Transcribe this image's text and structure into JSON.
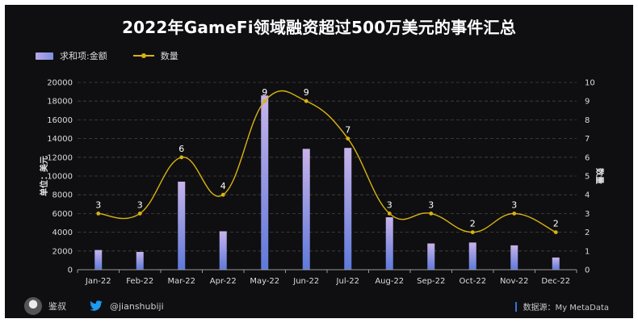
{
  "title": "2022年GameFi领域融资超过500万美元的事件汇总",
  "legend": {
    "bar_label": "求和项:金额",
    "line_label": "数量"
  },
  "footer": {
    "author": "鉴叔",
    "handle": "@jianshubiji",
    "source": "数据源：My MetaData"
  },
  "icons": [
    "avatar-icon",
    "twitter-bird-icon"
  ],
  "colors": {
    "background": "#0f0f11",
    "bar_top": "#c7b3ea",
    "bar_bottom": "#5f79da",
    "line": "#d8b311",
    "grid": "#3a3a3a",
    "text": "#dcdcdc"
  },
  "chart_data": {
    "type": "bar",
    "categories": [
      "Jan-22",
      "Feb-22",
      "Mar-22",
      "Apr-22",
      "May-22",
      "Jun-22",
      "Jul-22",
      "Aug-22",
      "Sep-22",
      "Oct-22",
      "Nov-22",
      "Dec-22"
    ],
    "series": [
      {
        "name": "求和项:金额",
        "type": "bar",
        "axis": "left",
        "values": [
          2100,
          1900,
          9400,
          4100,
          18600,
          12900,
          13000,
          5600,
          2800,
          2900,
          2600,
          1300
        ]
      },
      {
        "name": "数量",
        "type": "line",
        "axis": "right",
        "values": [
          3,
          3,
          6,
          4,
          9,
          9,
          7,
          3,
          3,
          2,
          3,
          2
        ]
      }
    ],
    "ylabel": "单位：美元",
    "y2label": "数量",
    "ylim": [
      0,
      20000
    ],
    "yticks": [
      0,
      2000,
      4000,
      6000,
      8000,
      10000,
      12000,
      14000,
      16000,
      18000,
      20000
    ],
    "y2lim": [
      0,
      10
    ],
    "y2ticks": [
      0,
      1,
      2,
      3,
      4,
      5,
      6,
      7,
      8,
      9,
      10
    ],
    "grid": true,
    "legend": "top-left"
  }
}
